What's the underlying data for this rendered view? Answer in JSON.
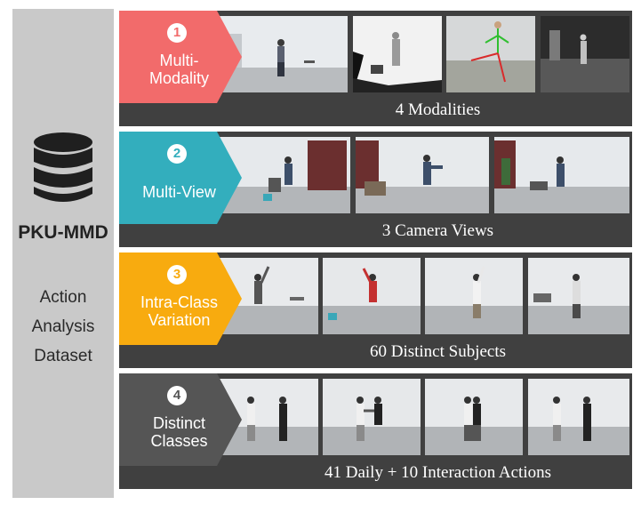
{
  "sidebar": {
    "title": "PKU-MMD",
    "subtitle_lines": [
      "Action",
      "Analysis",
      "Dataset"
    ],
    "icon": "database-icon"
  },
  "rows": [
    {
      "number": "1",
      "label_lines": [
        "Multi-",
        "Modality"
      ],
      "caption": "4 Modalities",
      "color": "#f26b6b",
      "thumbs": [
        {
          "kind": "rgb-frame",
          "icon": "rgb-image"
        },
        {
          "kind": "depth-map",
          "icon": "depth-image"
        },
        {
          "kind": "skeleton-overlay",
          "icon": "skeleton-image"
        },
        {
          "kind": "infrared",
          "icon": "ir-image"
        }
      ]
    },
    {
      "number": "2",
      "label_lines": [
        "Multi-View"
      ],
      "caption": "3 Camera Views",
      "color": "#33aebd",
      "thumbs": [
        {
          "kind": "view-left",
          "icon": "camera-view-image"
        },
        {
          "kind": "view-middle",
          "icon": "camera-view-image"
        },
        {
          "kind": "view-right",
          "icon": "camera-view-image"
        }
      ]
    },
    {
      "number": "3",
      "label_lines": [
        "Intra-Class",
        "Variation"
      ],
      "caption": "60 Distinct Subjects",
      "color": "#f8ab0f",
      "thumbs": [
        {
          "kind": "subject",
          "icon": "subject-image"
        },
        {
          "kind": "subject",
          "icon": "subject-image"
        },
        {
          "kind": "subject",
          "icon": "subject-image"
        },
        {
          "kind": "subject",
          "icon": "subject-image"
        }
      ]
    },
    {
      "number": "4",
      "label_lines": [
        "Distinct",
        "Classes"
      ],
      "caption": "41 Daily + 10 Interaction Actions",
      "color": "#555555",
      "thumbs": [
        {
          "kind": "interaction",
          "icon": "interaction-image"
        },
        {
          "kind": "interaction",
          "icon": "interaction-image"
        },
        {
          "kind": "interaction",
          "icon": "interaction-image"
        },
        {
          "kind": "interaction",
          "icon": "interaction-image"
        }
      ]
    }
  ]
}
